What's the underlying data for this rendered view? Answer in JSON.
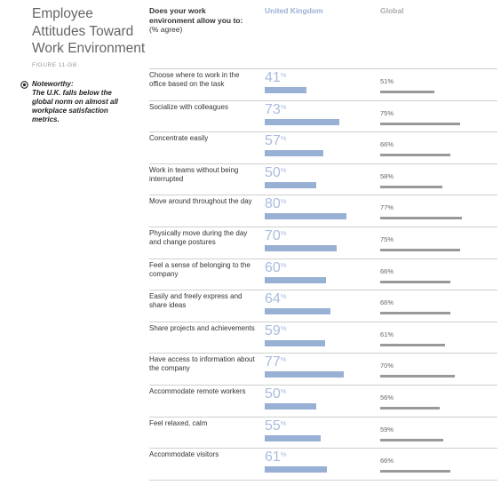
{
  "title": "Employee Attitudes Toward Work Environment",
  "figure_label": "FIGURE 11-GB",
  "note": {
    "head": "Noteworthy:",
    "text": "The U.K. falls below the global norm on almost all workplace satisfaction metrics."
  },
  "question": {
    "main": "Does your work environment allow you to:",
    "sub": "(% agree)"
  },
  "colors": {
    "uk": "#98b0d4",
    "global": "#999999"
  },
  "chart_data": {
    "type": "bar",
    "title": "Employee Attitudes Toward Work Environment",
    "xlabel": "",
    "ylabel": "(% agree)",
    "ylim": [
      0,
      100
    ],
    "categories": [
      "Choose where to work in the office based on the task",
      "Socialize with colleagues",
      "Concentrate easily",
      "Work in teams without being interrupted",
      "Move around throughout the day",
      "Physically move during the day and change postures",
      "Feel a sense of belonging to the company",
      "Easily and freely express and share ideas",
      "Share projects and achievements",
      "Have access to information about the company",
      "Accommodate remote workers",
      "Feel relaxed, calm",
      "Accommodate visitors"
    ],
    "series": [
      {
        "name": "United Kingdom",
        "values": [
          41,
          73,
          57,
          50,
          80,
          70,
          60,
          64,
          59,
          77,
          50,
          55,
          61
        ]
      },
      {
        "name": "Global",
        "values": [
          51,
          75,
          66,
          58,
          77,
          75,
          66,
          66,
          61,
          70,
          56,
          59,
          66
        ]
      }
    ]
  }
}
